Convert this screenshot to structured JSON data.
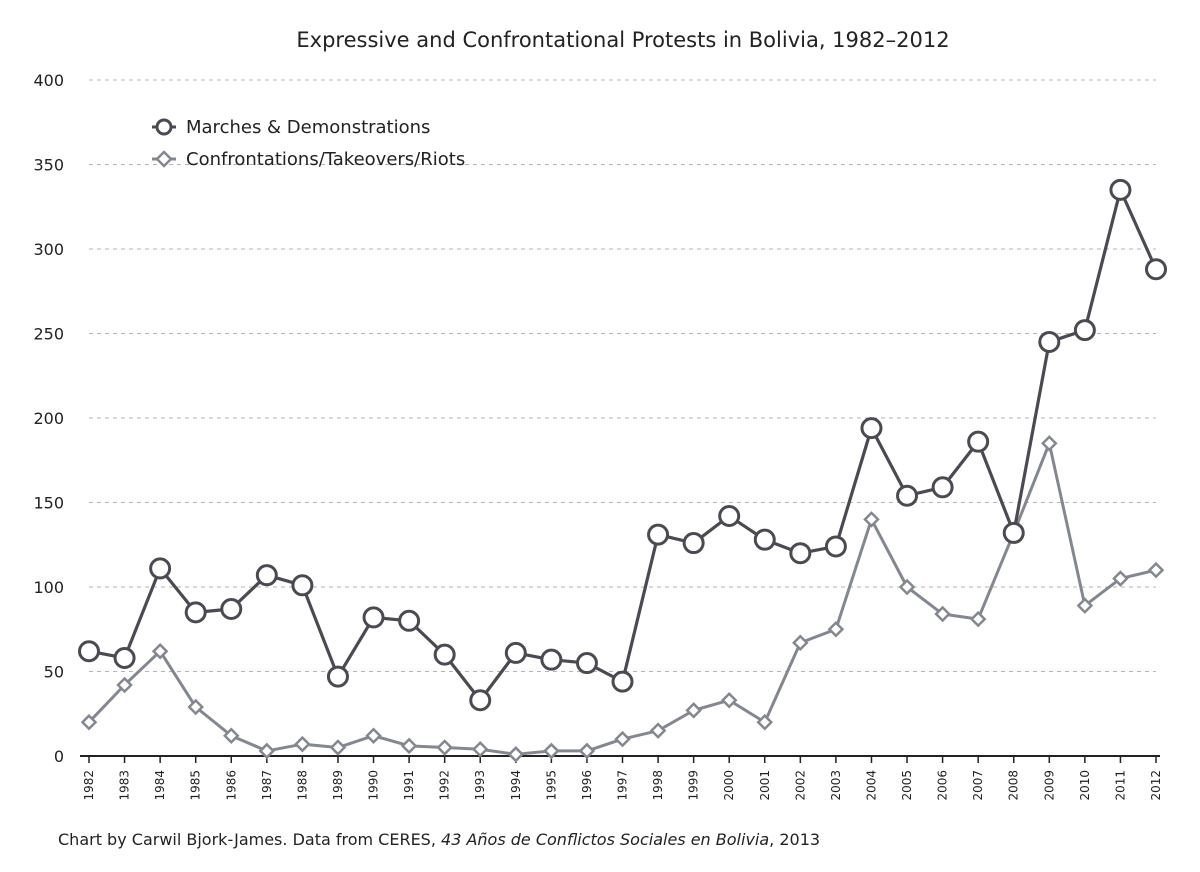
{
  "chart_data": {
    "type": "line",
    "title": "Expressive and Confrontational Protests in Bolivia, 1982–2012",
    "xlabel": "",
    "ylabel": "",
    "ylim": [
      0,
      400
    ],
    "yticks": [
      0,
      50,
      100,
      150,
      200,
      250,
      300,
      350,
      400
    ],
    "grid": true,
    "legend_position": "top-left",
    "categories": [
      "1982",
      "1983",
      "1984",
      "1985",
      "1986",
      "1987",
      "1988",
      "1989",
      "1990",
      "1991",
      "1992",
      "1993",
      "1994",
      "1995",
      "1996",
      "1997",
      "1998",
      "1999",
      "2000",
      "2001",
      "2002",
      "2003",
      "2004",
      "2005",
      "2006",
      "2007",
      "2008",
      "2009",
      "2010",
      "2011",
      "2012"
    ],
    "series": [
      {
        "name": "Marches & Demonstrations",
        "marker": "circle",
        "color": "#4a4a50",
        "values": [
          62,
          58,
          111,
          85,
          87,
          107,
          101,
          47,
          82,
          80,
          60,
          33,
          61,
          57,
          55,
          44,
          131,
          126,
          142,
          128,
          120,
          124,
          194,
          154,
          159,
          186,
          132,
          245,
          252,
          335,
          288
        ]
      },
      {
        "name": "Confrontations/Takeovers/Riots",
        "marker": "diamond",
        "color": "#84888e",
        "values": [
          20,
          42,
          62,
          29,
          12,
          3,
          7,
          5,
          12,
          6,
          5,
          4,
          1,
          3,
          3,
          10,
          15,
          27,
          33,
          20,
          67,
          75,
          140,
          100,
          84,
          81,
          132,
          185,
          89,
          105,
          110
        ]
      }
    ]
  },
  "caption": {
    "prefix": "Chart by Carwil Bjork-James. Data from CERES, ",
    "italic": "43 Años de Conflictos Sociales en Bolivia",
    "suffix": ", 2013"
  }
}
